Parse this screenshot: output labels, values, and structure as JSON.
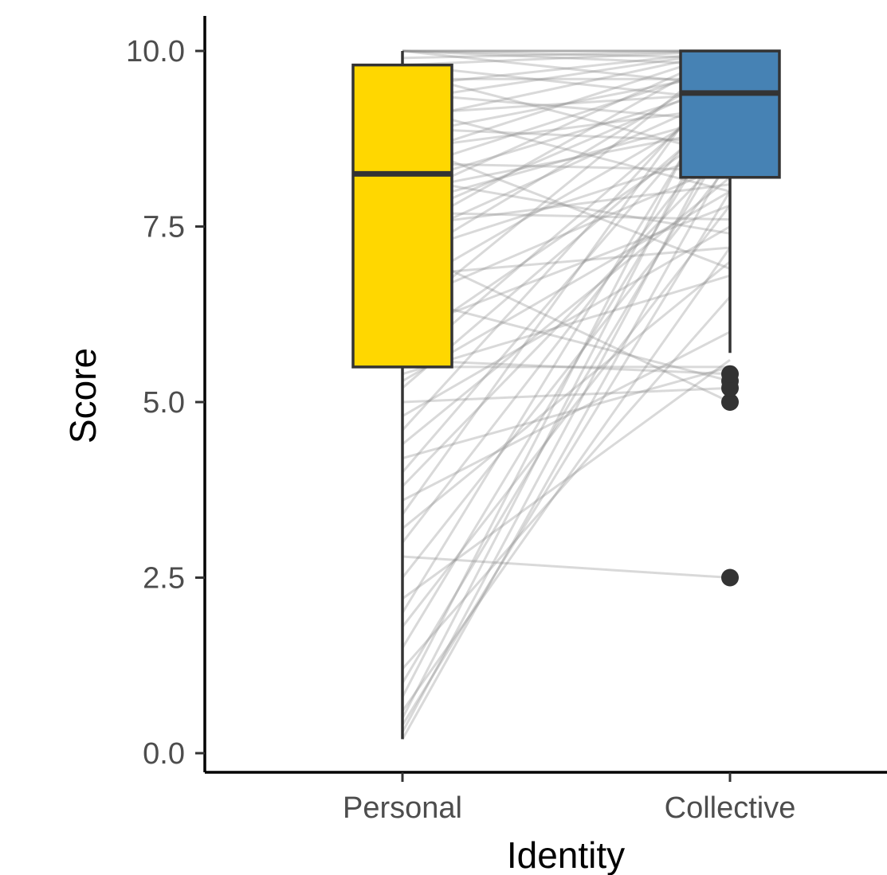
{
  "chart_data": {
    "type": "box",
    "xlabel": "Identity",
    "ylabel": "Score",
    "ylim": [
      0,
      10.5
    ],
    "yticks": [
      0.0,
      2.5,
      5.0,
      7.5,
      10.0
    ],
    "ytick_labels": [
      "0.0",
      "2.5",
      "5.0",
      "7.5",
      "10.0"
    ],
    "categories": [
      "Personal",
      "Collective"
    ],
    "boxes": [
      {
        "category": "Personal",
        "fill": "#FFD700",
        "whisker_low": 0.2,
        "q1": 5.5,
        "median": 8.25,
        "q3": 9.8,
        "whisker_high": 10.0,
        "outliers": []
      },
      {
        "category": "Collective",
        "fill": "#4682B4",
        "whisker_low": 5.7,
        "q1": 8.2,
        "median": 9.4,
        "q3": 10.0,
        "whisker_high": 10.0,
        "outliers": [
          2.5,
          5.0,
          5.2,
          5.3,
          5.4
        ]
      }
    ],
    "paired_lines": [
      [
        0.2,
        8.5
      ],
      [
        0.3,
        9.0
      ],
      [
        0.4,
        8.0
      ],
      [
        0.5,
        9.5
      ],
      [
        0.6,
        7.2
      ],
      [
        0.8,
        9.8
      ],
      [
        1.0,
        8.8
      ],
      [
        1.2,
        6.5
      ],
      [
        1.5,
        9.2
      ],
      [
        1.8,
        7.8
      ],
      [
        2.0,
        9.6
      ],
      [
        2.2,
        5.6
      ],
      [
        2.5,
        8.4
      ],
      [
        2.8,
        2.5
      ],
      [
        3.0,
        9.0
      ],
      [
        3.2,
        7.0
      ],
      [
        3.4,
        9.9
      ],
      [
        3.6,
        6.0
      ],
      [
        3.8,
        8.6
      ],
      [
        4.0,
        9.4
      ],
      [
        4.2,
        5.5
      ],
      [
        4.4,
        8.2
      ],
      [
        4.6,
        9.7
      ],
      [
        4.8,
        7.5
      ],
      [
        5.0,
        5.2
      ],
      [
        5.2,
        9.2
      ],
      [
        5.3,
        8.0
      ],
      [
        5.4,
        6.8
      ],
      [
        5.5,
        9.5
      ],
      [
        5.5,
        5.5
      ],
      [
        5.6,
        5.4
      ],
      [
        5.8,
        9.0
      ],
      [
        6.0,
        7.8
      ],
      [
        6.2,
        10.0
      ],
      [
        6.4,
        8.4
      ],
      [
        6.5,
        5.3
      ],
      [
        6.6,
        9.3
      ],
      [
        6.8,
        7.2
      ],
      [
        7.0,
        9.8
      ],
      [
        7.1,
        8.6
      ],
      [
        7.2,
        5.0
      ],
      [
        7.3,
        9.4
      ],
      [
        7.4,
        10.0
      ],
      [
        7.5,
        8.1
      ],
      [
        7.6,
        9.6
      ],
      [
        7.7,
        7.6
      ],
      [
        7.8,
        9.1
      ],
      [
        7.9,
        10.0
      ],
      [
        8.0,
        8.9
      ],
      [
        8.1,
        9.5
      ],
      [
        8.2,
        7.4
      ],
      [
        8.3,
        9.8
      ],
      [
        8.4,
        8.3
      ],
      [
        8.5,
        10.0
      ],
      [
        8.6,
        9.2
      ],
      [
        8.7,
        6.9
      ],
      [
        8.8,
        9.7
      ],
      [
        8.9,
        8.7
      ],
      [
        9.0,
        10.0
      ],
      [
        9.1,
        9.4
      ],
      [
        9.2,
        8.0
      ],
      [
        9.3,
        10.0
      ],
      [
        9.4,
        9.0
      ],
      [
        9.5,
        10.0
      ],
      [
        9.6,
        9.6
      ],
      [
        9.7,
        8.5
      ],
      [
        9.8,
        10.0
      ],
      [
        9.8,
        9.3
      ],
      [
        9.9,
        10.0
      ],
      [
        10.0,
        10.0
      ],
      [
        10.0,
        9.8
      ],
      [
        10.0,
        10.0
      ],
      [
        10.0,
        9.5
      ],
      [
        10.0,
        10.0
      ],
      [
        10.0,
        9.9
      ]
    ],
    "colors": {
      "line": "#888888",
      "box_stroke": "#333333",
      "axis": "#000000",
      "outlier": "#333333"
    }
  }
}
